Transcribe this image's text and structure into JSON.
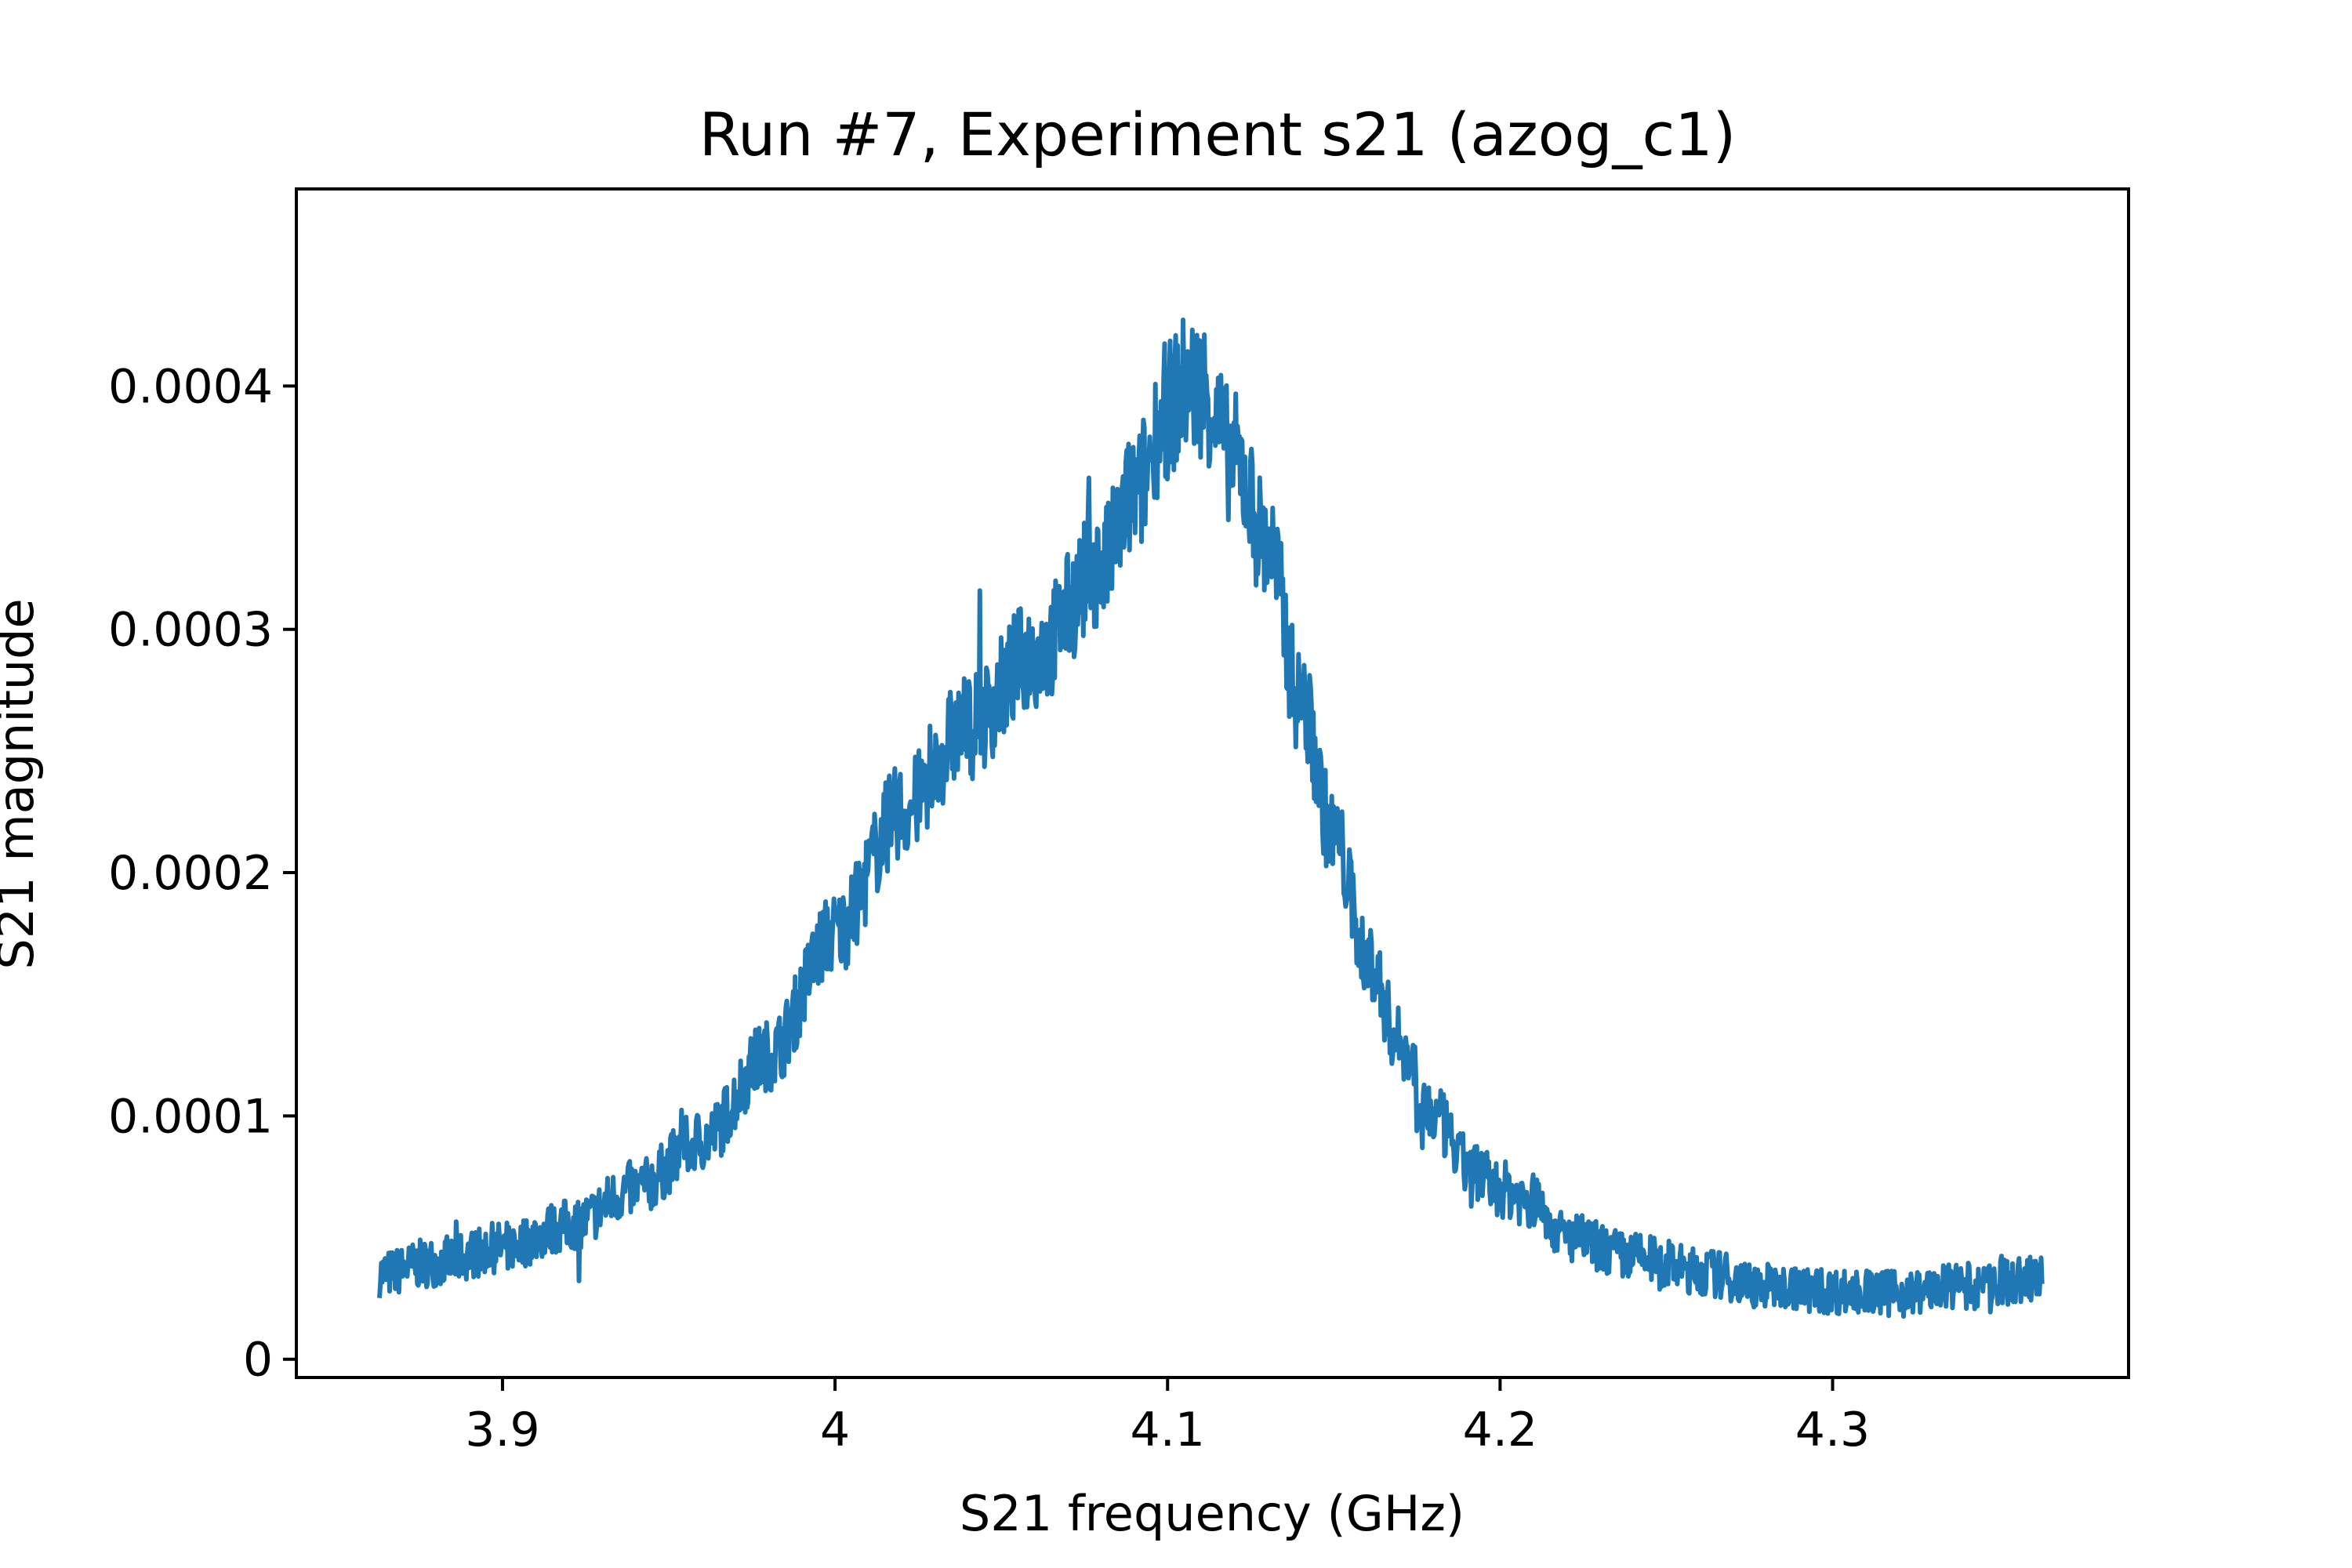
{
  "chart_data": {
    "type": "line",
    "title": "Run #7, Experiment s21 (azog_c1)",
    "xlabel": "S21 frequency (GHz)",
    "ylabel": "S21 magnitude",
    "xlim": [
      3.838,
      4.389
    ],
    "ylim": [
      -7.5e-06,
      0.000481
    ],
    "grid": false,
    "legend": "none",
    "x_ticks": [
      {
        "value": 3.9,
        "label": "3.9"
      },
      {
        "value": 4.0,
        "label": "4"
      },
      {
        "value": 4.1,
        "label": "4.1"
      },
      {
        "value": 4.2,
        "label": "4.2"
      },
      {
        "value": 4.3,
        "label": "4.3"
      }
    ],
    "y_ticks": [
      {
        "value": 0,
        "label": "0"
      },
      {
        "value": 0.0001,
        "label": "0.0001"
      },
      {
        "value": 0.0002,
        "label": "0.0002"
      },
      {
        "value": 0.0003,
        "label": "0.0003"
      },
      {
        "value": 0.0004,
        "label": "0.0004"
      }
    ],
    "series": [
      {
        "color": "#1f77b4",
        "noise_amplitude": 8e-06,
        "x": [
          3.863,
          3.88,
          3.9,
          3.92,
          3.94,
          3.96,
          3.98,
          4.0,
          4.02,
          4.04,
          4.06,
          4.08,
          4.09,
          4.1,
          4.105,
          4.11,
          4.12,
          4.13,
          4.14,
          4.15,
          4.16,
          4.17,
          4.18,
          4.19,
          4.2,
          4.21,
          4.22,
          4.24,
          4.26,
          4.28,
          4.3,
          4.32,
          4.34,
          4.363
        ],
        "y": [
          3.5e-05,
          4e-05,
          4.6e-05,
          5.5e-05,
          7e-05,
          9e-05,
          0.000125,
          0.000175,
          0.000225,
          0.00026,
          0.00029,
          0.000325,
          0.000355,
          0.00039,
          0.0004,
          0.0004,
          0.00037,
          0.000335,
          0.00027,
          0.000215,
          0.000165,
          0.00013,
          0.0001,
          8e-05,
          7e-05,
          6.5e-05,
          5e-05,
          4.2e-05,
          3.6e-05,
          3e-05,
          2.8e-05,
          2.7e-05,
          3e-05,
          3.3e-05
        ]
      }
    ]
  }
}
